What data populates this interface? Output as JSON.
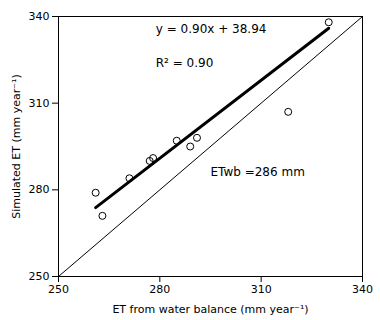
{
  "chart_data": {
    "type": "scatter",
    "xlabel": "ET from water balance (mm year⁻¹)",
    "ylabel": "Simulated ET (mm year⁻¹)",
    "xlim": [
      250,
      340
    ],
    "ylim": [
      250,
      340
    ],
    "xticks": [
      250,
      280,
      310,
      340
    ],
    "yticks": [
      250,
      280,
      310,
      340
    ],
    "grid": false,
    "series": [
      {
        "type": "line",
        "x": [
          250,
          340
        ],
        "values": [
          250,
          340
        ],
        "color": "#000000"
      },
      {
        "type": "line",
        "x": [
          261,
          330
        ],
        "values": [
          273.84,
          335.94
        ],
        "color": "#000000"
      },
      {
        "type": "scatter",
        "x": [
          261,
          263,
          271,
          277,
          278,
          285,
          289,
          291,
          318,
          330
        ],
        "values": [
          279,
          271,
          284,
          290,
          291,
          297,
          295,
          298,
          307,
          338
        ],
        "color": "#000000",
        "marker": "circle"
      }
    ],
    "annotations": [
      "y = 0.90x + 38.94",
      "R² = 0.90",
      "ETwb =286 mm"
    ]
  }
}
